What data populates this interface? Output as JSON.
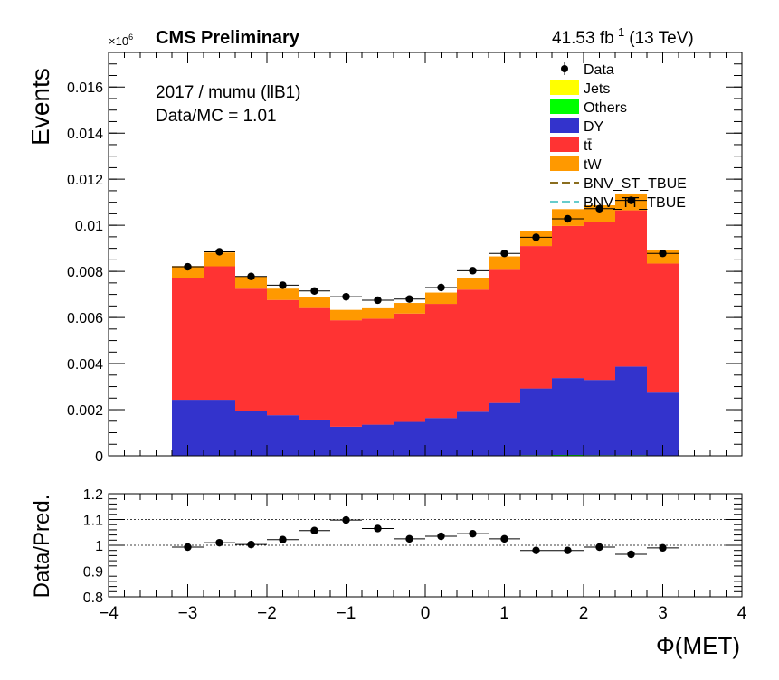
{
  "header": {
    "title": "CMS Preliminary",
    "lumi": "41.53 fb",
    "lumi_exp": "-1",
    "energy": "(13 TeV)",
    "multiplier": "×10",
    "multiplier_exp": "6"
  },
  "annotations": {
    "selection": "2017 / mumu (llB1)",
    "ratio": "Data/MC = 1.01"
  },
  "colors": {
    "Jets": "#ffff00",
    "Others": "#00ff00",
    "DY": "#3333cc",
    "tt": "#ff3333",
    "tW": "#ff9900",
    "BNV_ST_TBUE": "#8a6d1e",
    "BNV_TT_TBUE": "#66cccc"
  },
  "chart_data": [
    {
      "type": "bar",
      "stacked": true,
      "ylabel": "Events",
      "ylim": [
        0,
        0.0175
      ],
      "xlim": [
        -4,
        4
      ],
      "grid": false,
      "legend_position": "top-right",
      "bin_edges": [
        -3.2,
        -2.8,
        -2.4,
        -2.0,
        -1.6,
        -1.2,
        -0.8,
        -0.4,
        0.0,
        0.4,
        0.8,
        1.2,
        1.6,
        2.0,
        2.4,
        2.8,
        3.2
      ],
      "y_ticks": [
        "0",
        "0.002",
        "0.004",
        "0.006",
        "0.008",
        "0.01",
        "0.012",
        "0.014",
        "0.016"
      ],
      "y_tick_values": [
        0,
        0.002,
        0.004,
        0.006,
        0.008,
        0.01,
        0.012,
        0.014,
        0.016
      ],
      "series": [
        {
          "name": "Jets",
          "values": [
            0,
            0,
            0,
            0,
            0,
            0,
            0,
            0,
            0,
            0,
            0,
            0,
            0,
            0,
            0,
            0
          ]
        },
        {
          "name": "Others",
          "values": [
            2e-05,
            2e-05,
            2e-05,
            2e-05,
            2e-05,
            2e-05,
            2e-05,
            2e-05,
            2e-05,
            2e-05,
            2e-05,
            3e-05,
            4e-05,
            3e-05,
            3e-05,
            2e-05
          ]
        },
        {
          "name": "DY",
          "values": [
            0.00241,
            0.00241,
            0.00193,
            0.00174,
            0.00155,
            0.00124,
            0.00133,
            0.00145,
            0.00162,
            0.00189,
            0.00227,
            0.00289,
            0.00333,
            0.00326,
            0.00384,
            0.00272
          ]
        },
        {
          "name": "tt̄",
          "values": [
            0.0053,
            0.00579,
            0.0053,
            0.005,
            0.00484,
            0.00462,
            0.0046,
            0.0047,
            0.00495,
            0.0053,
            0.00578,
            0.00618,
            0.0066,
            0.00684,
            0.00678,
            0.0056
          ]
        },
        {
          "name": "tW",
          "values": [
            0.0005,
            0.0006,
            0.00052,
            0.00049,
            0.00047,
            0.00045,
            0.00045,
            0.00046,
            0.00049,
            0.00052,
            0.00058,
            0.00065,
            0.00073,
            0.00074,
            0.00073,
            0.00059
          ]
        }
      ],
      "legend": [
        "Data",
        "Jets",
        "Others",
        "DY",
        "tt̄",
        "tW",
        "BNV_ST_TBUE",
        "BNV_TT_TBUE"
      ],
      "data": {
        "name": "Data",
        "x": [
          -3.0,
          -2.6,
          -2.2,
          -1.8,
          -1.4,
          -1.0,
          -0.6,
          -0.2,
          0.2,
          0.6,
          1.0,
          1.4,
          1.8,
          2.2,
          2.6,
          3.0
        ],
        "y": [
          0.0082,
          0.00885,
          0.00778,
          0.0074,
          0.00715,
          0.0069,
          0.00675,
          0.0068,
          0.0073,
          0.00803,
          0.00878,
          0.00948,
          0.01028,
          0.01072,
          0.01108,
          0.00878
        ]
      }
    },
    {
      "type": "scatter",
      "ylabel": "Data/Pred.",
      "xlabel": "Φ(MET)",
      "ylim": [
        0.8,
        1.2
      ],
      "xlim": [
        -4,
        4
      ],
      "grid": true,
      "y_ticks": [
        "0.8",
        "0.9",
        "1",
        "1.1",
        "1.2"
      ],
      "y_tick_values": [
        0.8,
        0.9,
        1.0,
        1.1,
        1.2
      ],
      "x_ticks": [
        "−4",
        "−3",
        "−2",
        "−1",
        "0",
        "1",
        "2",
        "3",
        "4"
      ],
      "x_tick_values": [
        -4,
        -3,
        -2,
        -1,
        0,
        1,
        2,
        3,
        4
      ],
      "x": [
        -3.0,
        -2.6,
        -2.2,
        -1.8,
        -1.4,
        -1.0,
        -0.6,
        -0.2,
        0.2,
        0.6,
        1.0,
        1.4,
        1.8,
        2.2,
        2.6,
        3.0
      ],
      "y": [
        0.993,
        1.01,
        1.003,
        1.022,
        1.057,
        1.098,
        1.065,
        1.025,
        1.035,
        1.045,
        1.025,
        0.98,
        0.98,
        0.993,
        0.965,
        0.99
      ]
    }
  ]
}
